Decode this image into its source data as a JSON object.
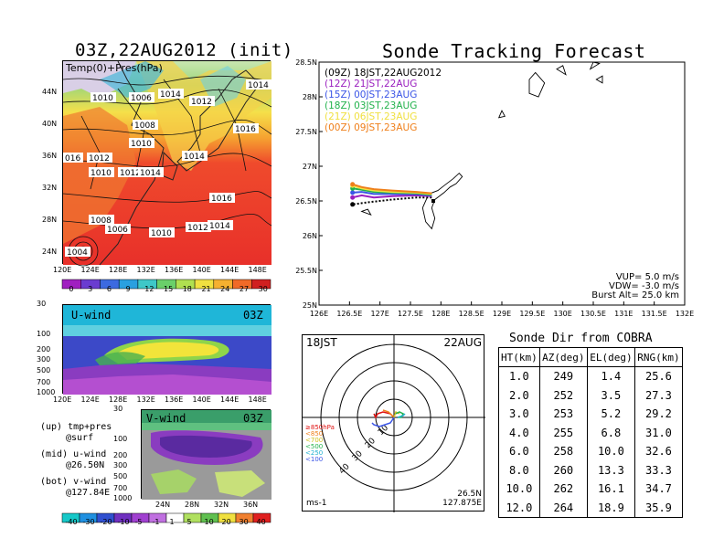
{
  "left_title": "03Z,22AUG2012 (init)",
  "top_map": {
    "label": "Temp(0)+Pres(hPa)",
    "pressure_labels": [
      "1014",
      "1010",
      "1006",
      "1012",
      "1014",
      "1008",
      "1016",
      "1010",
      "1014",
      "016",
      "1012",
      "1010",
      "1012",
      "1014",
      "1016",
      "1008",
      "1006",
      "1010",
      "1012",
      "1014",
      "1004"
    ],
    "lat_ticks": [
      "44N",
      "40N",
      "36N",
      "32N",
      "28N",
      "24N"
    ],
    "lon_ticks": [
      "120E",
      "124E",
      "128E",
      "132E",
      "136E",
      "140E",
      "144E",
      "148E"
    ]
  },
  "temp_colorbar": {
    "ticks": [
      "0",
      "3",
      "6",
      "9",
      "12",
      "15",
      "18",
      "21",
      "24",
      "27",
      "30"
    ]
  },
  "u_panel": {
    "label": "U-wind",
    "time": "03Z",
    "p_ticks": [
      "30",
      "100",
      "200",
      "300",
      "500",
      "700",
      "1000"
    ],
    "lon_ticks": [
      "120E",
      "124E",
      "128E",
      "132E",
      "136E",
      "140E",
      "144E",
      "148E"
    ]
  },
  "v_panel": {
    "label": "V-wind",
    "time": "03Z",
    "p_ticks": [
      "30",
      "100",
      "200",
      "300",
      "500",
      "700",
      "1000"
    ],
    "lat_ticks": [
      "24N",
      "28N",
      "32N",
      "36N"
    ]
  },
  "wind_legend": [
    {
      "a": "(up) tmp+pres",
      "b": "@surf"
    },
    {
      "a": "(mid) u-wind",
      "b": "@26.50N"
    },
    {
      "a": "(bot) v-wind",
      "b": "@127.84E"
    }
  ],
  "wind_colorbar": {
    "ticks": [
      "-40",
      "-30",
      "-20",
      "-10",
      "-5",
      "-1",
      "1",
      "5",
      "10",
      "20",
      "30",
      "40"
    ]
  },
  "right_title": "Sonde Tracking Forecast",
  "chart_data": {
    "type": "line",
    "title": "Sonde Tracking Forecast",
    "x_ticks": [
      "126E",
      "126.5E",
      "127E",
      "127.5E",
      "128E",
      "128.5E",
      "129E",
      "129.5E",
      "130E",
      "130.5E",
      "131E",
      "131.5E",
      "132E"
    ],
    "y_ticks": [
      "25N",
      "25.5N",
      "26N",
      "26.5N",
      "27N",
      "27.5N",
      "28N",
      "28.5N"
    ],
    "xlim": [
      126,
      132
    ],
    "ylim": [
      25,
      28.5
    ],
    "series": [
      {
        "name": "(09Z) 18JST,22AUG2012",
        "color": "#000000",
        "points": [
          [
            127.85,
            26.55
          ],
          [
            127.6,
            26.55
          ],
          [
            127.2,
            26.52
          ],
          [
            126.8,
            26.48
          ],
          [
            126.55,
            26.45
          ]
        ]
      },
      {
        "name": "(12Z) 21JST,22AUG",
        "color": "#9a1fbf",
        "points": [
          [
            127.85,
            26.57
          ],
          [
            127.6,
            26.58
          ],
          [
            127.2,
            26.57
          ],
          [
            126.9,
            26.55
          ],
          [
            126.7,
            26.58
          ],
          [
            126.55,
            26.55
          ]
        ]
      },
      {
        "name": "(15Z) 00JST,23AUG",
        "color": "#3b55e6",
        "points": [
          [
            127.85,
            26.58
          ],
          [
            127.6,
            26.6
          ],
          [
            127.2,
            26.6
          ],
          [
            126.9,
            26.6
          ],
          [
            126.7,
            26.63
          ],
          [
            126.55,
            26.62
          ]
        ]
      },
      {
        "name": "(18Z) 03JST,23AUG",
        "color": "#22b24c",
        "points": [
          [
            127.85,
            26.59
          ],
          [
            127.6,
            26.61
          ],
          [
            127.2,
            26.62
          ],
          [
            126.9,
            26.63
          ],
          [
            126.7,
            26.66
          ],
          [
            126.55,
            26.68
          ]
        ]
      },
      {
        "name": "(21Z) 06JST,23AUG",
        "color": "#f0e040",
        "points": [
          [
            127.85,
            26.6
          ],
          [
            127.6,
            26.62
          ],
          [
            127.2,
            26.63
          ],
          [
            126.9,
            26.65
          ],
          [
            126.7,
            26.68
          ],
          [
            126.55,
            26.72
          ]
        ]
      },
      {
        "name": "(00Z) 09JST,23AUG",
        "color": "#ef7f1a",
        "points": [
          [
            127.85,
            26.61
          ],
          [
            127.6,
            26.63
          ],
          [
            127.2,
            26.65
          ],
          [
            126.9,
            26.67
          ],
          [
            126.7,
            26.7
          ],
          [
            126.55,
            26.74
          ]
        ]
      }
    ],
    "launch_site": [
      127.875,
      26.5
    ],
    "params": {
      "vup": "VUP=  5.0  m/s",
      "vdw": "VDW= -3.0  m/s",
      "burst": "Burst Alt= 25.0  km"
    }
  },
  "hodograph": {
    "time_label": "18JST",
    "date_label": "22AUG",
    "loc1": "26.5N",
    "loc2": "127.875E",
    "unit": "ms-1",
    "ring_labels": [
      "10",
      "20",
      "30",
      "40"
    ],
    "levels": [
      {
        "label": "≥850hPa",
        "color": "#e01010"
      },
      {
        "label": "<850",
        "color": "#ef7f1a"
      },
      {
        "label": "<700",
        "color": "#d0c020"
      },
      {
        "label": "<500",
        "color": "#22b24c"
      },
      {
        "label": "<250",
        "color": "#20b0d0"
      },
      {
        "label": "<100",
        "color": "#3b55e6"
      }
    ]
  },
  "table": {
    "title": "Sonde Dir from COBRA",
    "headers": [
      "HT(km)",
      "AZ(deg)",
      "EL(deg)",
      "RNG(km)"
    ],
    "rows": [
      [
        "1.0",
        "249",
        "1.4",
        "25.6"
      ],
      [
        "2.0",
        "252",
        "3.5",
        "27.3"
      ],
      [
        "3.0",
        "253",
        "5.2",
        "29.2"
      ],
      [
        "4.0",
        "255",
        "6.8",
        "31.0"
      ],
      [
        "6.0",
        "258",
        "10.0",
        "32.6"
      ],
      [
        "8.0",
        "260",
        "13.3",
        "33.3"
      ],
      [
        "10.0",
        "262",
        "16.1",
        "34.7"
      ],
      [
        "12.0",
        "264",
        "18.9",
        "35.9"
      ]
    ]
  }
}
